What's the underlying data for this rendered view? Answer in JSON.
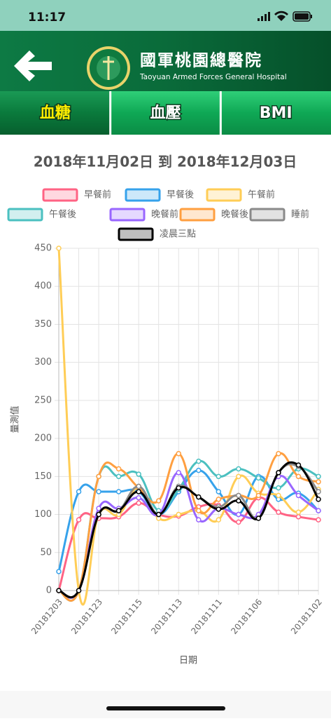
{
  "status_bar": {
    "time": "11:17"
  },
  "header": {
    "title": "國軍桃園總醫院",
    "subtitle": "Taoyuan Armed Forces General Hospital"
  },
  "tabs": [
    "血糖",
    "血壓",
    "BMI"
  ],
  "chart_data": {
    "type": "line",
    "title": "2018年11月02日 到 2018年12月03日",
    "x_label": "日期",
    "y_label": "量測值",
    "categories": [
      "20181203",
      null,
      "20181123",
      null,
      "20181115",
      null,
      "20181113",
      null,
      "20181111",
      null,
      "20181106",
      null,
      null,
      "20181102"
    ],
    "ylim": [
      0,
      450
    ],
    "yticks": [
      0,
      50,
      100,
      150,
      200,
      250,
      300,
      350,
      400,
      450
    ],
    "grid": true,
    "series": [
      {
        "name": "早餐前",
        "color": "#ff6384",
        "values": [
          0,
          93,
          95,
          97,
          115,
          100,
          98,
          110,
          112,
          90,
          122,
          103,
          97,
          93
        ]
      },
      {
        "name": "早餐後",
        "color": "#36a2eb",
        "values": [
          25,
          130,
          130,
          130,
          130,
          100,
          130,
          158,
          130,
          100,
          150,
          120,
          128,
          105
        ]
      },
      {
        "name": "午餐前",
        "color": "#ffcd56",
        "values": [
          450,
          0,
          100,
          100,
          135,
          95,
          100,
          105,
          93,
          150,
          128,
          125,
          103,
          133
        ]
      },
      {
        "name": "午餐後",
        "color": "#4bc0c0",
        "values": [
          0,
          0,
          150,
          150,
          153,
          105,
          133,
          170,
          150,
          160,
          148,
          135,
          160,
          150
        ]
      },
      {
        "name": "晚餐前",
        "color": "#9966ff",
        "values": [
          0,
          0,
          108,
          108,
          122,
          100,
          155,
          93,
          108,
          100,
          100,
          150,
          125,
          105
        ]
      },
      {
        "name": "晚餐後",
        "color": "#ff9f40",
        "values": [
          0,
          0,
          150,
          160,
          135,
          118,
          180,
          105,
          120,
          125,
          125,
          180,
          150,
          143
        ]
      },
      {
        "name": "睡前",
        "color": "#8a8a8a",
        "values": [
          0,
          0,
          100,
          105,
          137,
          100,
          137,
          123,
          110,
          125,
          95,
          155,
          163,
          130
        ]
      },
      {
        "name": "凌晨三點",
        "color": "#000000",
        "values": [
          0,
          0,
          100,
          105,
          130,
          100,
          135,
          123,
          107,
          118,
          95,
          155,
          165,
          120
        ]
      }
    ]
  }
}
